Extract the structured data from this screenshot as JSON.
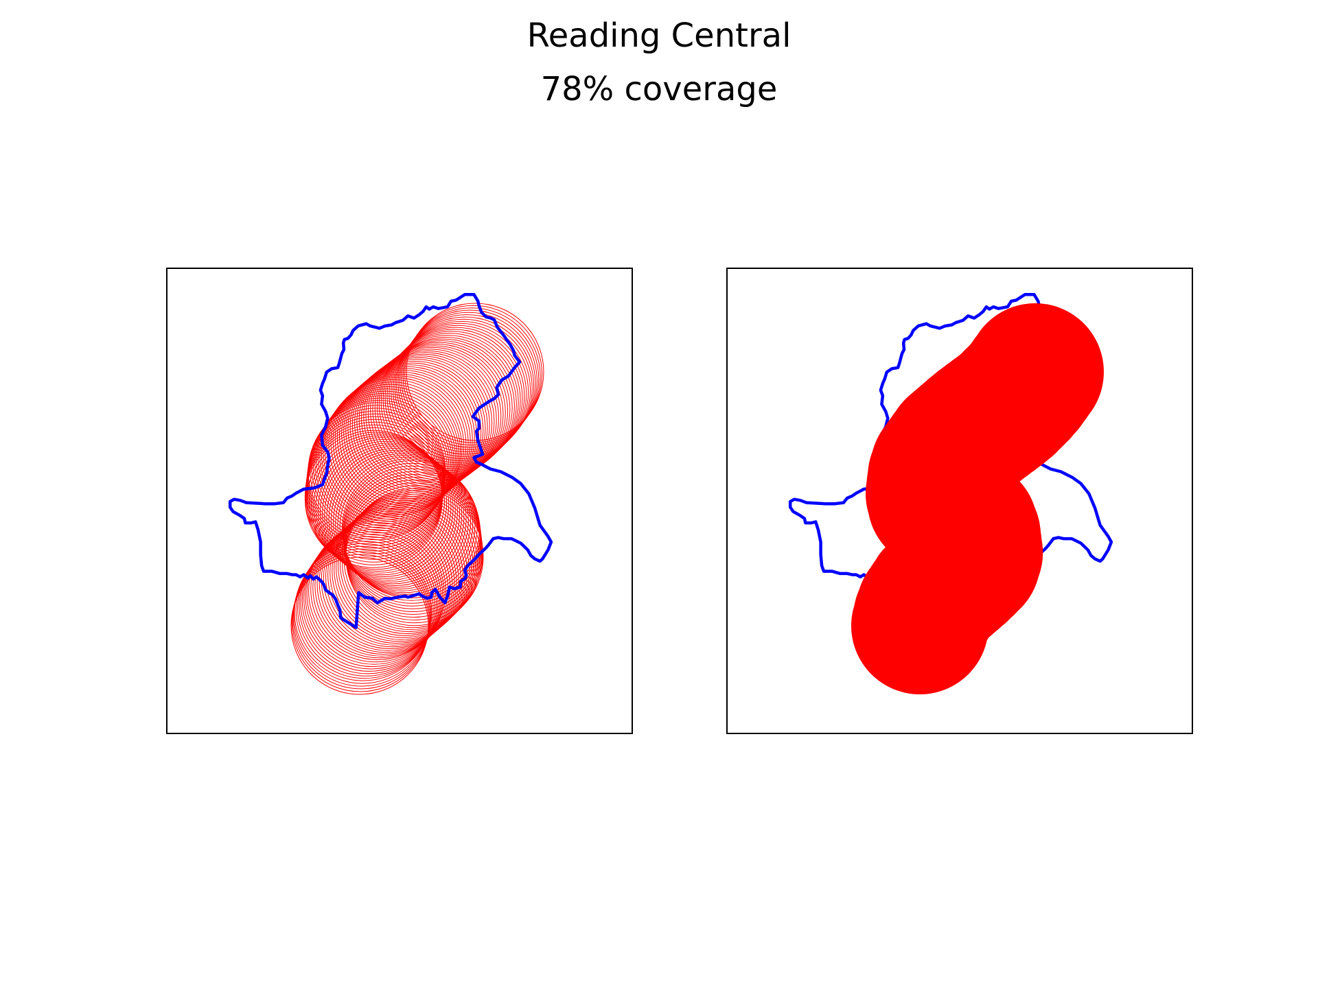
{
  "figure": {
    "title": "Reading Central",
    "subtitle": "78% coverage"
  },
  "colors": {
    "boundary": "#0000ff",
    "coverage": "#ff0000",
    "frame": "#000000",
    "background": "#ffffff"
  },
  "panels": [
    {
      "name": "coverage-circles-outline",
      "style": "outline"
    },
    {
      "name": "coverage-circles-filled",
      "style": "filled"
    }
  ],
  "coverage_percent": 78
}
